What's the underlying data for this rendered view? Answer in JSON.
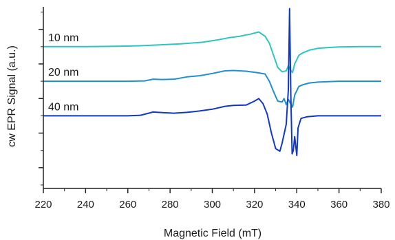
{
  "chart_data": {
    "type": "line",
    "title": "",
    "xlabel": "Magnetic Field (mT)",
    "ylabel": "cw EPR Signal (a.u.)",
    "xlim": [
      220,
      380
    ],
    "x_ticks": [
      220,
      240,
      260,
      280,
      300,
      320,
      340,
      360,
      380
    ],
    "x_tick_labels": [
      "220",
      "240",
      "260",
      "280",
      "300",
      "320",
      "340",
      "360",
      "380"
    ],
    "y_tick_labels_shown": false,
    "ylim": [
      -6.2,
      4.3
    ],
    "grid": false,
    "legend": "none (series labelled directly above each trace)",
    "series": [
      {
        "name": "10 nm",
        "color": "#2ec4bf",
        "baseline_offset": 2.0,
        "points": [
          [
            220,
            0
          ],
          [
            240,
            0
          ],
          [
            255,
            0.02
          ],
          [
            265,
            0.05
          ],
          [
            275,
            0.1
          ],
          [
            285,
            0.16
          ],
          [
            295,
            0.25
          ],
          [
            302,
            0.38
          ],
          [
            308,
            0.52
          ],
          [
            313,
            0.6
          ],
          [
            318,
            0.72
          ],
          [
            322,
            0.85
          ],
          [
            325,
            0.6
          ],
          [
            327,
            0.2
          ],
          [
            329,
            -0.5
          ],
          [
            331,
            -1.2
          ],
          [
            333,
            -1.45
          ],
          [
            335,
            -1.4
          ],
          [
            336,
            -1.1
          ],
          [
            337,
            -1.35
          ],
          [
            338,
            -1.5
          ],
          [
            339,
            -1.0
          ],
          [
            341,
            -0.5
          ],
          [
            343,
            -0.35
          ],
          [
            346,
            -0.2
          ],
          [
            350,
            -0.1
          ],
          [
            355,
            -0.05
          ],
          [
            360,
            -0.02
          ],
          [
            370,
            0
          ],
          [
            380,
            0
          ]
        ]
      },
      {
        "name": "20 nm",
        "color": "#1f8fcf",
        "baseline_offset": 0.0,
        "points": [
          [
            220,
            0
          ],
          [
            240,
            0
          ],
          [
            260,
            0
          ],
          [
            268,
            0.02
          ],
          [
            272,
            0.12
          ],
          [
            276,
            0.1
          ],
          [
            282,
            0.12
          ],
          [
            288,
            0.25
          ],
          [
            294,
            0.32
          ],
          [
            300,
            0.45
          ],
          [
            306,
            0.6
          ],
          [
            310,
            0.62
          ],
          [
            316,
            0.58
          ],
          [
            321,
            0.5
          ],
          [
            325,
            0.42
          ],
          [
            327,
            0.0
          ],
          [
            329,
            -0.6
          ],
          [
            331,
            -1.15
          ],
          [
            333,
            -1.2
          ],
          [
            334,
            -1.0
          ],
          [
            335,
            -1.35
          ],
          [
            336,
            -1.05
          ],
          [
            338,
            -1.5
          ],
          [
            339,
            -0.8
          ],
          [
            341,
            -0.3
          ],
          [
            343,
            -0.2
          ],
          [
            346,
            -0.1
          ],
          [
            350,
            -0.05
          ],
          [
            360,
            0
          ],
          [
            380,
            0
          ]
        ]
      },
      {
        "name": "40 nm",
        "color": "#1038c8",
        "baseline_offset": -2.0,
        "points": [
          [
            220,
            0
          ],
          [
            240,
            0
          ],
          [
            260,
            0
          ],
          [
            266,
            0.03
          ],
          [
            272,
            0.22
          ],
          [
            277,
            0.18
          ],
          [
            282,
            0.15
          ],
          [
            288,
            0.2
          ],
          [
            294,
            0.28
          ],
          [
            300,
            0.38
          ],
          [
            306,
            0.55
          ],
          [
            310,
            0.6
          ],
          [
            316,
            0.62
          ],
          [
            320,
            0.85
          ],
          [
            322,
            1.0
          ],
          [
            324,
            0.7
          ],
          [
            326,
            0.1
          ],
          [
            328,
            -1.0
          ],
          [
            330,
            -1.9
          ],
          [
            332,
            -2.05
          ],
          [
            333,
            -1.6
          ],
          [
            335,
            -0.5
          ],
          [
            336,
            1.5
          ],
          [
            336.6,
            6.2
          ],
          [
            337.2,
            1.0
          ],
          [
            337.8,
            -2.2
          ],
          [
            338.4,
            -2.0
          ],
          [
            339,
            -1.2
          ],
          [
            340,
            -2.3
          ],
          [
            340.6,
            -0.7
          ],
          [
            342,
            -0.15
          ],
          [
            345,
            -0.05
          ],
          [
            350,
            0
          ],
          [
            360,
            0
          ],
          [
            380,
            0
          ]
        ]
      }
    ]
  }
}
